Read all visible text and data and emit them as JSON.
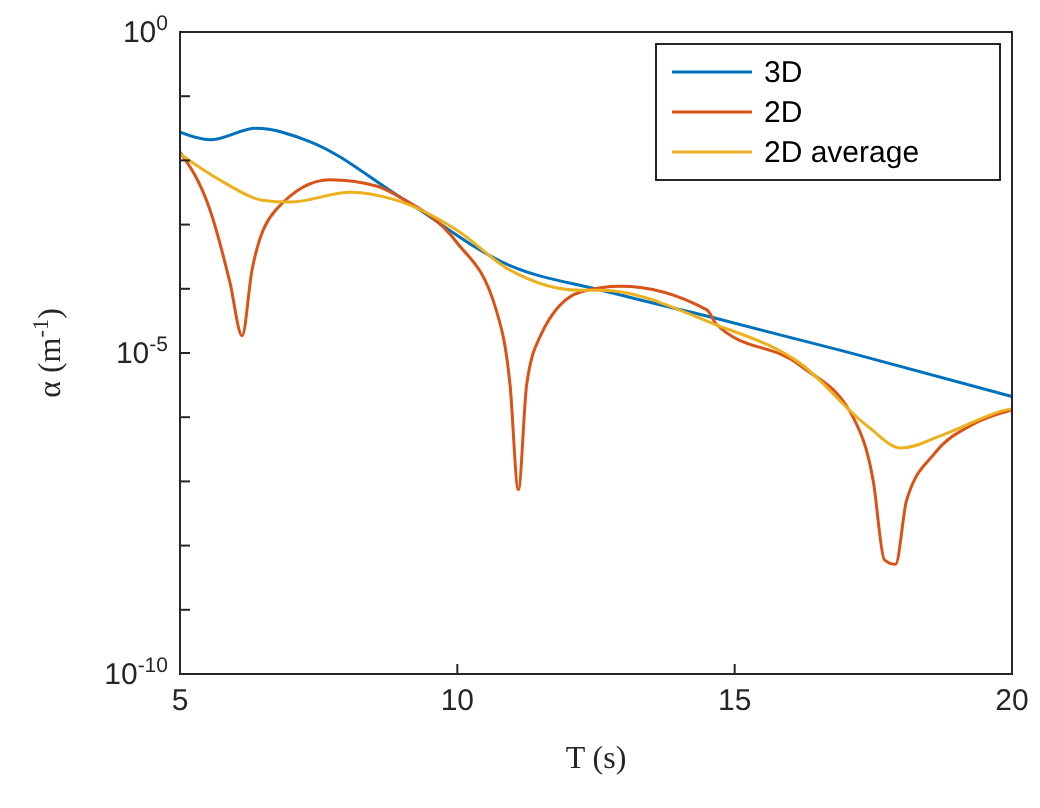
{
  "chart_data": {
    "type": "line",
    "xlabel": "T (s)",
    "ylabel": "α (m$^{-1}$)",
    "log": "y",
    "xlim": [
      5,
      20
    ],
    "xticks": [
      5,
      10,
      15,
      20
    ],
    "ylim": [
      1e-10,
      1
    ],
    "yticks": [
      {
        "value": 1e-10,
        "label": "10$^{-10}$"
      },
      {
        "value": 1e-09,
        "label": null
      },
      {
        "value": 1e-08,
        "label": null
      },
      {
        "value": 1e-07,
        "label": null
      },
      {
        "value": 1e-06,
        "label": null
      },
      {
        "value": 1e-05,
        "label": "10$^{-5}$"
      },
      {
        "value": 0.0001,
        "label": null
      },
      {
        "value": 0.001,
        "label": null
      },
      {
        "value": 0.01,
        "label": null
      },
      {
        "value": 0.1,
        "label": null
      },
      {
        "value": 1,
        "label": "10$^{0}$"
      }
    ],
    "legend": "top right",
    "line_style": "solid",
    "marker": "none",
    "grid": false,
    "series": [
      {
        "name": "3D",
        "color": "#0072bd",
        "x": [
          5,
          5.54,
          6.37,
          7.35,
          9.0,
          10.95,
          12.6,
          14.64,
          17,
          20
        ],
        "values": [
          0.0275,
          0.0209,
          0.0316,
          0.0195,
          0.00257,
          0.000229,
          9.5e-05,
          3.5e-05,
          1.05e-05,
          2.1e-06
        ]
      },
      {
        "name": "2D",
        "color": "#d95319",
        "x": [
          5,
          5.54,
          5.9,
          6.12,
          6.3,
          6.73,
          7.7,
          8.54,
          9.0,
          9.98,
          10.7,
          10.95,
          11.1,
          11.25,
          11.5,
          12.22,
          12.94,
          14.5,
          14.67,
          16.19,
          17.16,
          17.5,
          17.7,
          17.9,
          18.1,
          18.6,
          19.3,
          20
        ],
        "values": [
          0.0135,
          0.0017,
          0.000126,
          1.86e-05,
          0.0002,
          0.0017,
          0.005,
          0.004,
          0.00257,
          0.00054,
          4.7e-05,
          3.2e-06,
          7.4e-08,
          3.2e-06,
          1.86e-05,
          8.9e-05,
          0.00011,
          4.7e-05,
          2.8e-05,
          6.3e-06,
          9.1e-07,
          1e-07,
          6e-09,
          5.1e-09,
          5.1e-08,
          2.7e-07,
          7.8e-07,
          1.3e-06
        ]
      },
      {
        "name": "2D average",
        "color": "#edb120",
        "x": [
          5,
          5.8,
          6.48,
          6.99,
          8.07,
          8.9,
          9.98,
          10.95,
          12.2,
          12.6,
          14.64,
          16.19,
          17.4,
          18.0,
          18.8,
          19.9,
          20
        ],
        "values": [
          0.0126,
          0.0045,
          0.0024,
          0.00224,
          0.0032,
          0.0024,
          0.00083,
          0.000195,
          9.5e-05,
          9.5e-05,
          2.8e-05,
          6.8e-06,
          7.2e-07,
          3.3e-07,
          5.5e-07,
          1.3e-06,
          1.35e-06
        ]
      }
    ]
  }
}
